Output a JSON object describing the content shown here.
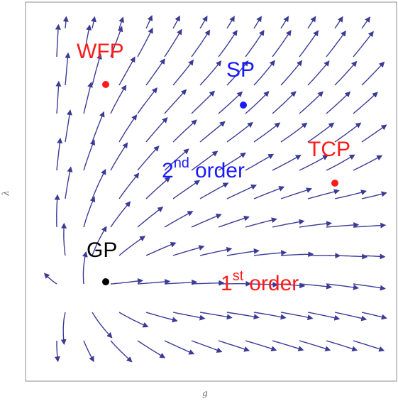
{
  "axes": {
    "x_label": "g",
    "y_label": "λ"
  },
  "colors": {
    "stream": "#3b3b96",
    "frame": "#8c8c8c",
    "red": "#ff1a1a",
    "blue": "#1a1aff",
    "black": "#000000"
  },
  "fixed_points": [
    {
      "label": "WFP",
      "color": "red"
    },
    {
      "label": "SP",
      "color": "blue"
    },
    {
      "label": "TCP",
      "color": "red"
    },
    {
      "label": "GP",
      "color": "black"
    }
  ],
  "regions": {
    "second": {
      "num": "2",
      "sup": "nd",
      "word": "order",
      "color": "blue"
    },
    "first": {
      "num": "1",
      "sup": "st",
      "word": "order",
      "color": "red"
    }
  }
}
